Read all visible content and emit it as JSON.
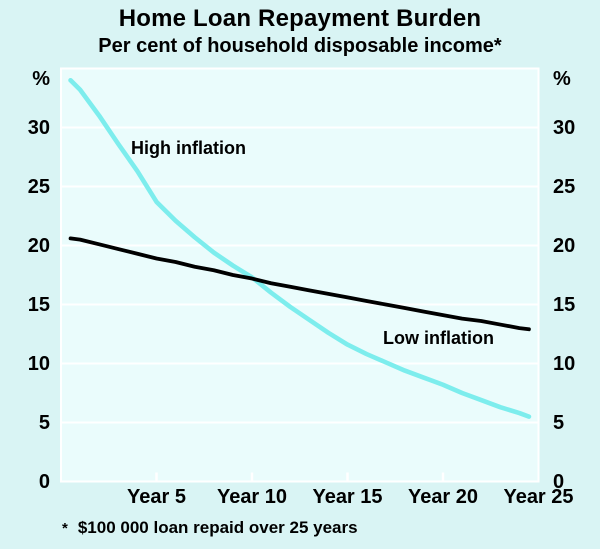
{
  "header": {
    "title": "Home Loan Repayment Burden",
    "subtitle": "Per cent of household disposable income*"
  },
  "footnote": {
    "marker": "*",
    "text": "$100 000 loan repaid over 25 years"
  },
  "colors": {
    "background": "#d9f4f4",
    "plot_background": "#eafcfc",
    "grid": "#ffffff",
    "frame": "#ffffff",
    "high_inflation_line": "#7deded",
    "low_inflation_line": "#000000",
    "text": "#000000"
  },
  "chart_data": {
    "type": "line",
    "title": "Home Loan Repayment Burden",
    "subtitle": "Per cent of household disposable income*",
    "footnote": "* $100 000 loan repaid over 25 years",
    "grid": {
      "horizontal": true,
      "vertical": false
    },
    "legend_position": "inline-annotations",
    "y_axis": {
      "unit": "%",
      "unit_left": "%",
      "unit_right": "%",
      "range": [
        0,
        35
      ],
      "ticks": [
        0,
        5,
        10,
        15,
        20,
        25,
        30
      ],
      "labels_both_sides": true
    },
    "x_axis": {
      "range": [
        0,
        25
      ],
      "ticks": [
        {
          "year": 5,
          "label": "Year 5"
        },
        {
          "year": 10,
          "label": "Year 10"
        },
        {
          "year": 15,
          "label": "Year 15"
        },
        {
          "year": 20,
          "label": "Year 20"
        },
        {
          "year": 25,
          "label": "Year 25"
        }
      ]
    },
    "x": [
      0.5,
      1,
      2,
      3,
      4,
      5,
      6,
      7,
      8,
      9,
      10,
      11,
      12,
      13,
      14,
      15,
      16,
      17,
      18,
      19,
      20,
      21,
      22,
      23,
      24,
      24.5
    ],
    "series": [
      {
        "name": "High inflation",
        "color": "#7deded",
        "values": [
          34.0,
          33.2,
          31.0,
          28.6,
          26.3,
          23.7,
          22.1,
          20.7,
          19.4,
          18.3,
          17.3,
          16.0,
          14.8,
          13.7,
          12.6,
          11.6,
          10.8,
          10.1,
          9.4,
          8.8,
          8.2,
          7.5,
          6.9,
          6.3,
          5.8,
          5.5
        ]
      },
      {
        "name": "Low inflation",
        "color": "#000000",
        "values": [
          20.6,
          20.5,
          20.1,
          19.7,
          19.3,
          18.9,
          18.6,
          18.2,
          17.9,
          17.5,
          17.2,
          16.8,
          16.5,
          16.2,
          15.9,
          15.6,
          15.3,
          15.0,
          14.7,
          14.4,
          14.1,
          13.8,
          13.6,
          13.3,
          13.0,
          12.9
        ]
      }
    ]
  }
}
